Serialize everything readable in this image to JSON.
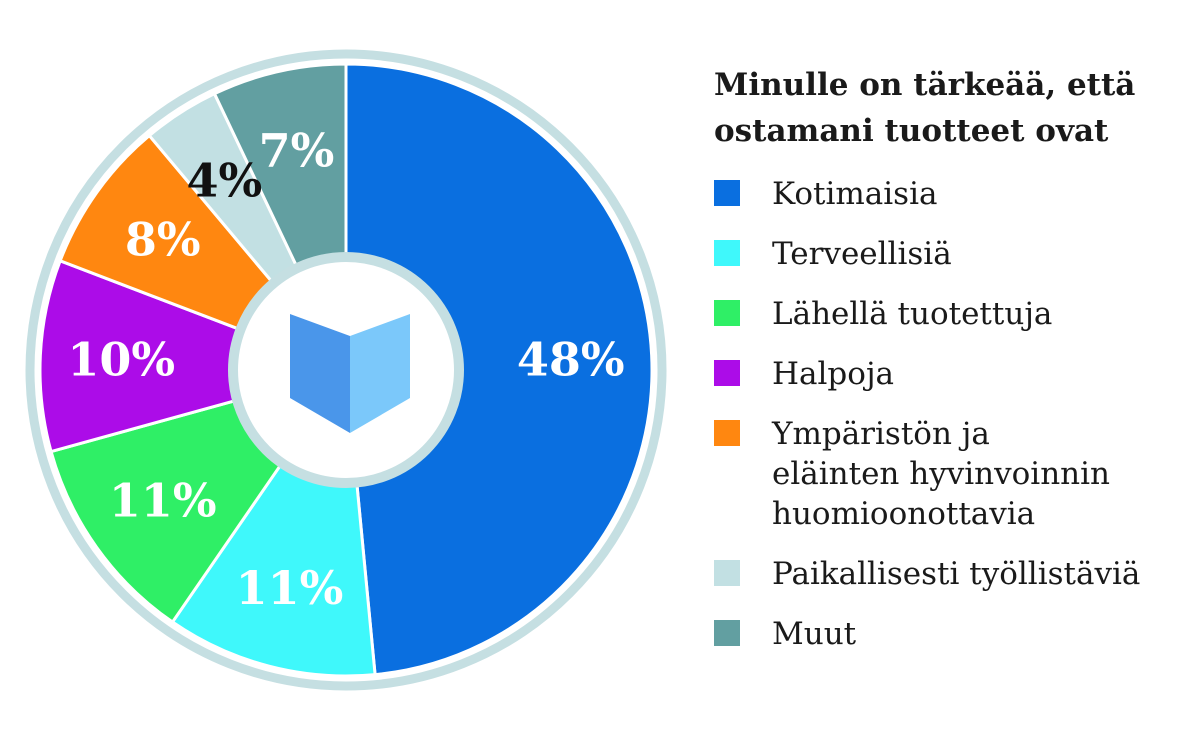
{
  "chart_data": {
    "type": "pie",
    "donut": true,
    "title": "Minulle on tärkeää, että ostamani tuotteet ovat",
    "categories": [
      "Kotimaisia",
      "Terveellisiä",
      "Lähellä tuotettuja",
      "Halpoja",
      "Ympäristön ja eläinten hyvinvoinnin huomioonottavia",
      "Paikallisesti työllistäviä",
      "Muut"
    ],
    "legend_labels": [
      "Kotimaisia",
      "Terveellisiä",
      "Lähellä tuotettuja",
      "Halpoja",
      "Ympäristön ja\neläinten hyvinvoinnin\nhuomioonottavia",
      "Paikallisesti työllistäviä",
      "Muut"
    ],
    "values": [
      48,
      11,
      11,
      10,
      8,
      4,
      7
    ],
    "value_labels": [
      "48%",
      "11%",
      "11%",
      "10%",
      "8%",
      "4%",
      "7%"
    ],
    "colors": [
      "#0a6fe0",
      "#3ff8fb",
      "#2fef66",
      "#ac0ce8",
      "#ff8710",
      "#c2e0e3",
      "#629fa1"
    ],
    "label_colors": [
      "#ffffff",
      "#ffffff",
      "#ffffff",
      "#ffffff",
      "#ffffff",
      "#111111",
      "#ffffff"
    ],
    "ring_color": "#c5dfe2",
    "legend_position": "right",
    "center_icon": "open-book-icon"
  }
}
